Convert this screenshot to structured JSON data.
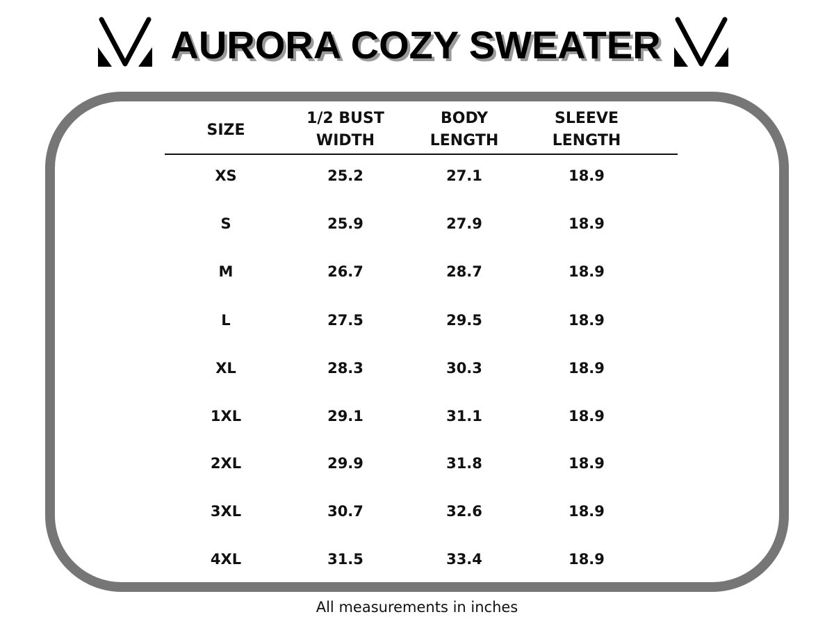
{
  "title": "AURORA COZY SWEATER",
  "logo": {
    "icon": "v-logo",
    "color": "#000000"
  },
  "frame_color": "#767676",
  "table": {
    "headers": [
      [
        "SIZE"
      ],
      [
        "1/2 BUST",
        "WIDTH"
      ],
      [
        "BODY",
        "LENGTH"
      ],
      [
        "SLEEVE",
        "LENGTH"
      ]
    ],
    "rows": [
      [
        "XS",
        "25.2",
        "27.1",
        "18.9"
      ],
      [
        "S",
        "25.9",
        "27.9",
        "18.9"
      ],
      [
        "M",
        "26.7",
        "28.7",
        "18.9"
      ],
      [
        "L",
        "27.5",
        "29.5",
        "18.9"
      ],
      [
        "XL",
        "28.3",
        "30.3",
        "18.9"
      ],
      [
        "1XL",
        "29.1",
        "31.1",
        "18.9"
      ],
      [
        "2XL",
        "29.9",
        "31.8",
        "18.9"
      ],
      [
        "3XL",
        "30.7",
        "32.6",
        "18.9"
      ],
      [
        "4XL",
        "31.5",
        "33.4",
        "18.9"
      ]
    ]
  },
  "footnote": "All measurements in inches"
}
